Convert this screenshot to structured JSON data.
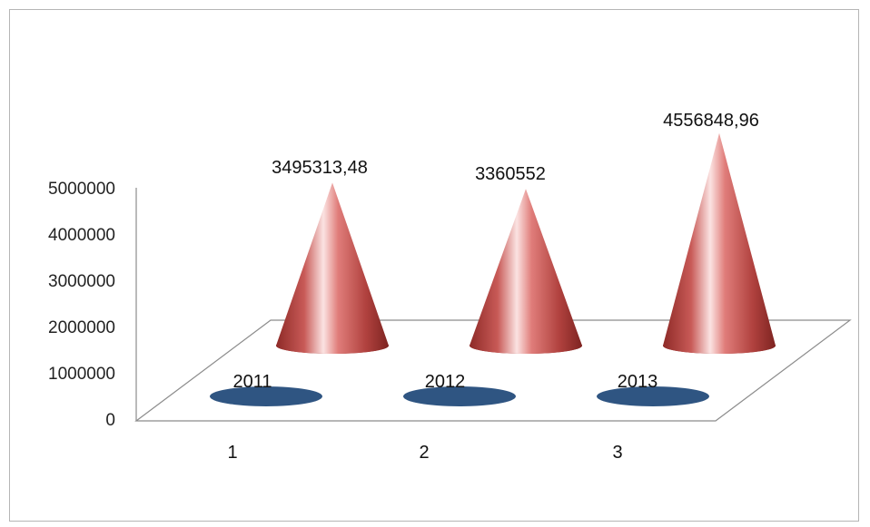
{
  "chart_data": {
    "type": "bar",
    "style": "3d-cone",
    "categories": [
      "1",
      "2",
      "3"
    ],
    "series": [
      {
        "values": [
          3495313.48,
          3360552,
          4556848.96
        ],
        "data_labels": [
          "3495313,48",
          "3360552",
          "4556848,96"
        ],
        "color": "#c0504d"
      },
      {
        "values": [
          2011,
          2012,
          2013
        ],
        "data_labels": [
          "2011",
          "2012",
          "2013"
        ],
        "color": "#2f5582"
      }
    ],
    "y_ticks": [
      "0",
      "1000000",
      "2000000",
      "3000000",
      "4000000",
      "5000000"
    ],
    "ylim": [
      0,
      5000000
    ],
    "grid": false,
    "legend": "none"
  }
}
